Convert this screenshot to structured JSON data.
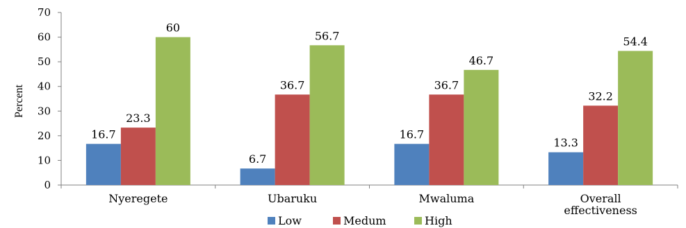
{
  "chart_data": {
    "type": "bar",
    "ylabel": "Percent",
    "xlabel": "",
    "ylim": [
      0,
      70
    ],
    "yticks": [
      0,
      10,
      20,
      30,
      40,
      50,
      60,
      70
    ],
    "grid": false,
    "legend_position": "bottom",
    "categories": [
      [
        "Nyeregete"
      ],
      [
        "Ubaruku"
      ],
      [
        "Mwaluma"
      ],
      [
        "Overall",
        "effectiveness"
      ]
    ],
    "series": [
      {
        "name": "Low",
        "color": "#4f81bd",
        "values": [
          16.7,
          6.7,
          16.7,
          13.3
        ]
      },
      {
        "name": "Medum",
        "color": "#c0504d",
        "values": [
          23.3,
          36.7,
          36.7,
          32.2
        ]
      },
      {
        "name": "High",
        "color": "#9bbb59",
        "values": [
          60,
          56.7,
          46.7,
          54.4
        ]
      }
    ]
  }
}
